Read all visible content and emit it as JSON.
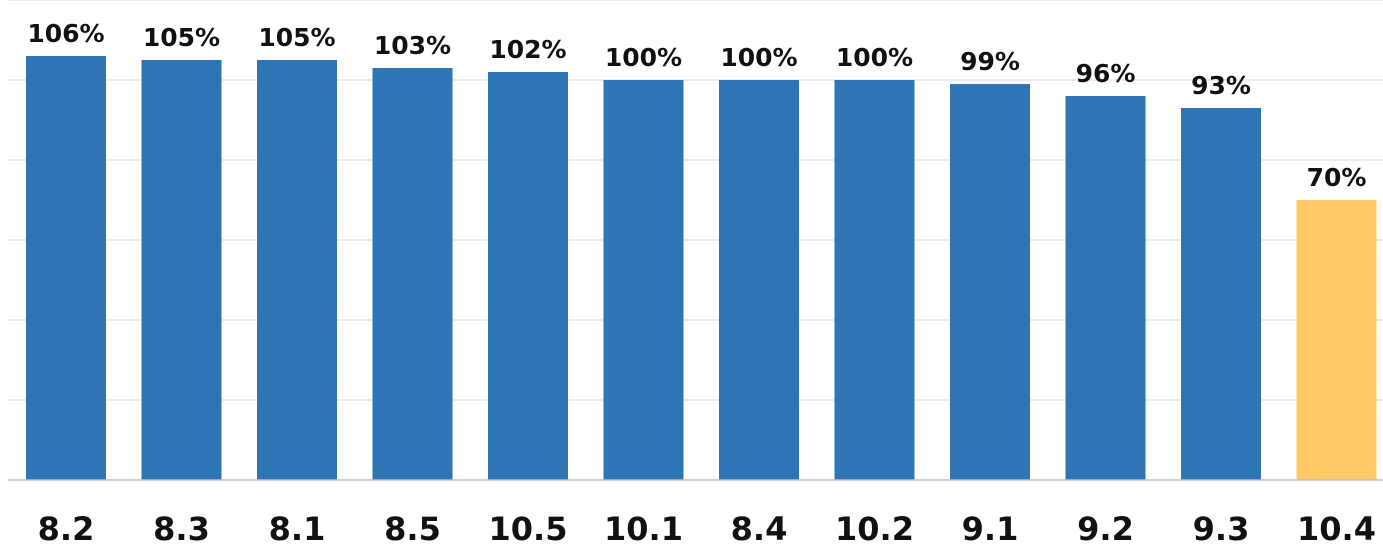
{
  "chart_data": {
    "type": "bar",
    "title": "",
    "xlabel": "",
    "ylabel": "",
    "categories": [
      "8.2",
      "8.3",
      "8.1",
      "8.5",
      "10.5",
      "10.1",
      "8.4",
      "10.2",
      "9.1",
      "9.2",
      "9.3",
      "10.4"
    ],
    "values": [
      106,
      105,
      105,
      103,
      102,
      100,
      100,
      100,
      99,
      96,
      93,
      70
    ],
    "data_labels": [
      "106%",
      "105%",
      "105%",
      "103%",
      "102%",
      "100%",
      "100%",
      "100%",
      "99%",
      "96%",
      "93%",
      "70%"
    ],
    "value_unit": "%",
    "ylim": [
      0,
      120
    ],
    "grid": true,
    "y_axis_tick_labels_shown": false,
    "legend": "none",
    "colors": {
      "default_bar": "#2e75b6",
      "highlight_bar": "#ffc965",
      "gridline": "#d9d9d9",
      "baseline": "#bfbfbf"
    },
    "highlight_categories": [
      "10.4"
    ]
  }
}
